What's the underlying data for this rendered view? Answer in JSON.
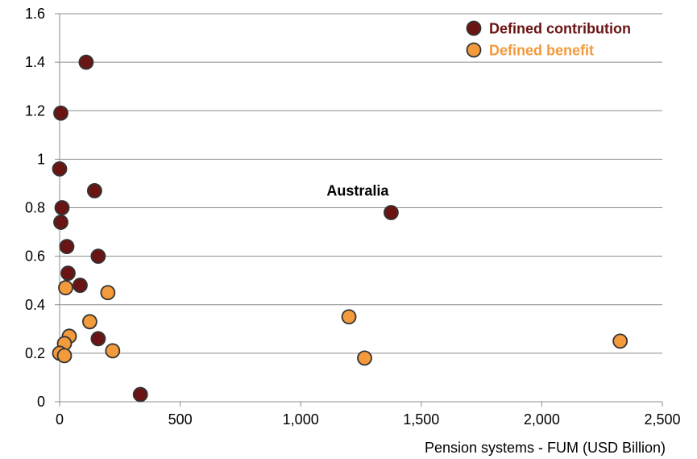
{
  "chart_data": {
    "type": "scatter",
    "title": "",
    "xlabel": "Pension systems - FUM (USD Billion)",
    "ylabel": "",
    "xlim": [
      0,
      2500
    ],
    "ylim": [
      0,
      1.6
    ],
    "x_ticks": [
      0,
      500,
      1000,
      1500,
      2000,
      2500
    ],
    "x_tick_labels": [
      "0",
      "500",
      "1,000",
      "1,500",
      "2,000",
      "2,500"
    ],
    "y_ticks": [
      0,
      0.2,
      0.4,
      0.6,
      0.8,
      1,
      1.2,
      1.4,
      1.6
    ],
    "y_tick_labels": [
      "0",
      "0.2",
      "0.4",
      "0.6",
      "0.8",
      "1",
      "1.2",
      "1.4",
      "1.6"
    ],
    "grid": "horizontal",
    "legend_position": "top-right",
    "series": [
      {
        "name": "Defined contribution",
        "color": "#6b1414",
        "points": [
          {
            "x": 110,
            "y": 1.4
          },
          {
            "x": 5,
            "y": 1.19
          },
          {
            "x": 0,
            "y": 0.96
          },
          {
            "x": 145,
            "y": 0.87
          },
          {
            "x": 10,
            "y": 0.8
          },
          {
            "x": 5,
            "y": 0.74
          },
          {
            "x": 30,
            "y": 0.64
          },
          {
            "x": 160,
            "y": 0.6
          },
          {
            "x": 35,
            "y": 0.53
          },
          {
            "x": 85,
            "y": 0.48
          },
          {
            "x": 160,
            "y": 0.26
          },
          {
            "x": 335,
            "y": 0.03
          },
          {
            "x": 1375,
            "y": 0.78
          }
        ]
      },
      {
        "name": "Defined benefit",
        "color": "#f39a3c",
        "points": [
          {
            "x": 25,
            "y": 0.47
          },
          {
            "x": 200,
            "y": 0.45
          },
          {
            "x": 125,
            "y": 0.33
          },
          {
            "x": 40,
            "y": 0.27
          },
          {
            "x": 20,
            "y": 0.24
          },
          {
            "x": 220,
            "y": 0.21
          },
          {
            "x": 0,
            "y": 0.2
          },
          {
            "x": 20,
            "y": 0.19
          },
          {
            "x": 1200,
            "y": 0.35
          },
          {
            "x": 1265,
            "y": 0.18
          },
          {
            "x": 2325,
            "y": 0.25
          }
        ]
      }
    ],
    "annotations": [
      {
        "text": "Australia",
        "x": 1375,
        "y": 0.78
      }
    ]
  }
}
